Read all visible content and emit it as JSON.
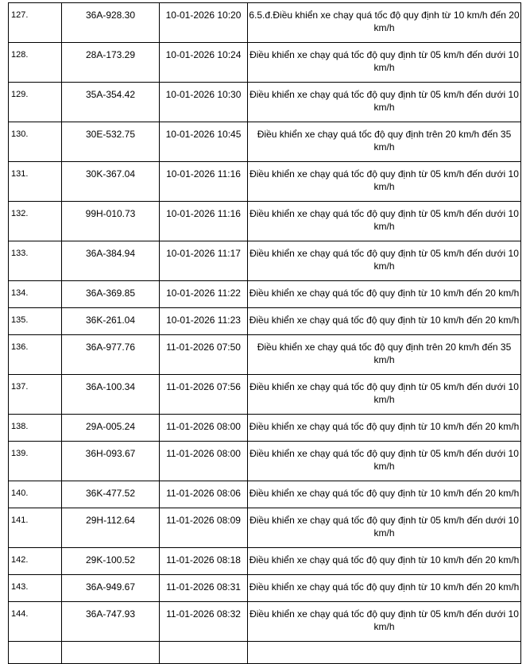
{
  "rows": [
    {
      "no": "127.",
      "plate": "36A-928.30",
      "datetime": "10-01-2026 10:20",
      "violation": "6.5.đ.Điều khiển xe chạy quá tốc độ quy định từ 10 km/h đến 20 km/h"
    },
    {
      "no": "128.",
      "plate": "28A-173.29",
      "datetime": "10-01-2026 10:24",
      "violation": "Điều khiển xe chạy quá tốc độ quy định từ 05 km/h đến dưới 10 km/h"
    },
    {
      "no": "129.",
      "plate": "35A-354.42",
      "datetime": "10-01-2026 10:30",
      "violation": "Điều khiển xe chạy quá tốc độ quy định từ 05 km/h đến dưới 10 km/h"
    },
    {
      "no": "130.",
      "plate": "30E-532.75",
      "datetime": "10-01-2026 10:45",
      "violation": "Điều khiển xe chạy quá tốc độ quy định trên 20 km/h đến 35 km/h"
    },
    {
      "no": "131.",
      "plate": "30K-367.04",
      "datetime": "10-01-2026 11:16",
      "violation": "Điều khiển xe chạy quá tốc độ quy định từ 05 km/h đến dưới 10 km/h"
    },
    {
      "no": "132.",
      "plate": "99H-010.73",
      "datetime": "10-01-2026 11:16",
      "violation": "Điều khiển xe chạy quá tốc độ quy định từ 05 km/h đến dưới 10 km/h"
    },
    {
      "no": "133.",
      "plate": "36A-384.94",
      "datetime": "10-01-2026 11:17",
      "violation": "Điều khiển xe chạy quá tốc độ quy định từ 05 km/h đến dưới 10 km/h"
    },
    {
      "no": "134.",
      "plate": "36A-369.85",
      "datetime": "10-01-2026 11:22",
      "violation": "Điều khiển xe chạy quá tốc độ quy định từ 10 km/h đến 20 km/h"
    },
    {
      "no": "135.",
      "plate": "36K-261.04",
      "datetime": "10-01-2026 11:23",
      "violation": "Điều khiển xe chạy quá tốc độ quy định từ 10 km/h đến 20 km/h"
    },
    {
      "no": "136.",
      "plate": "36A-977.76",
      "datetime": "11-01-2026 07:50",
      "violation": "Điều khiển xe chạy quá tốc độ quy định trên 20 km/h đến 35 km/h"
    },
    {
      "no": "137.",
      "plate": "36A-100.34",
      "datetime": "11-01-2026 07:56",
      "violation": "Điều khiển xe chạy quá tốc độ quy định từ 05 km/h đến dưới 10 km/h"
    },
    {
      "no": "138.",
      "plate": "29A-005.24",
      "datetime": "11-01-2026 08:00",
      "violation": "Điều khiển xe chạy quá tốc độ quy định từ 10 km/h đến 20 km/h"
    },
    {
      "no": "139.",
      "plate": "36H-093.67",
      "datetime": "11-01-2026 08:00",
      "violation": "Điều khiển xe chạy quá tốc độ quy định từ 05 km/h đến dưới 10 km/h"
    },
    {
      "no": "140.",
      "plate": "36K-477.52",
      "datetime": "11-01-2026 08:06",
      "violation": "Điều khiển xe chạy quá tốc độ quy định từ 10 km/h đến 20 km/h"
    },
    {
      "no": "141.",
      "plate": "29H-112.64",
      "datetime": "11-01-2026 08:09",
      "violation": "Điều khiển xe chạy quá tốc độ quy định từ 05 km/h đến dưới 10 km/h"
    },
    {
      "no": "142.",
      "plate": "29K-100.52",
      "datetime": "11-01-2026 08:18",
      "violation": "Điều khiển xe chạy quá tốc độ quy định từ 10 km/h đến 20 km/h"
    },
    {
      "no": "143.",
      "plate": "36A-949.67",
      "datetime": "11-01-2026 08:31",
      "violation": "Điều khiển xe chạy quá tốc độ quy định từ 10 km/h đến 20 km/h"
    },
    {
      "no": "144.",
      "plate": "36A-747.93",
      "datetime": "11-01-2026 08:32",
      "violation": "Điều khiển xe chạy quá tốc độ quy định từ 05 km/h đến dưới 10 km/h"
    }
  ]
}
